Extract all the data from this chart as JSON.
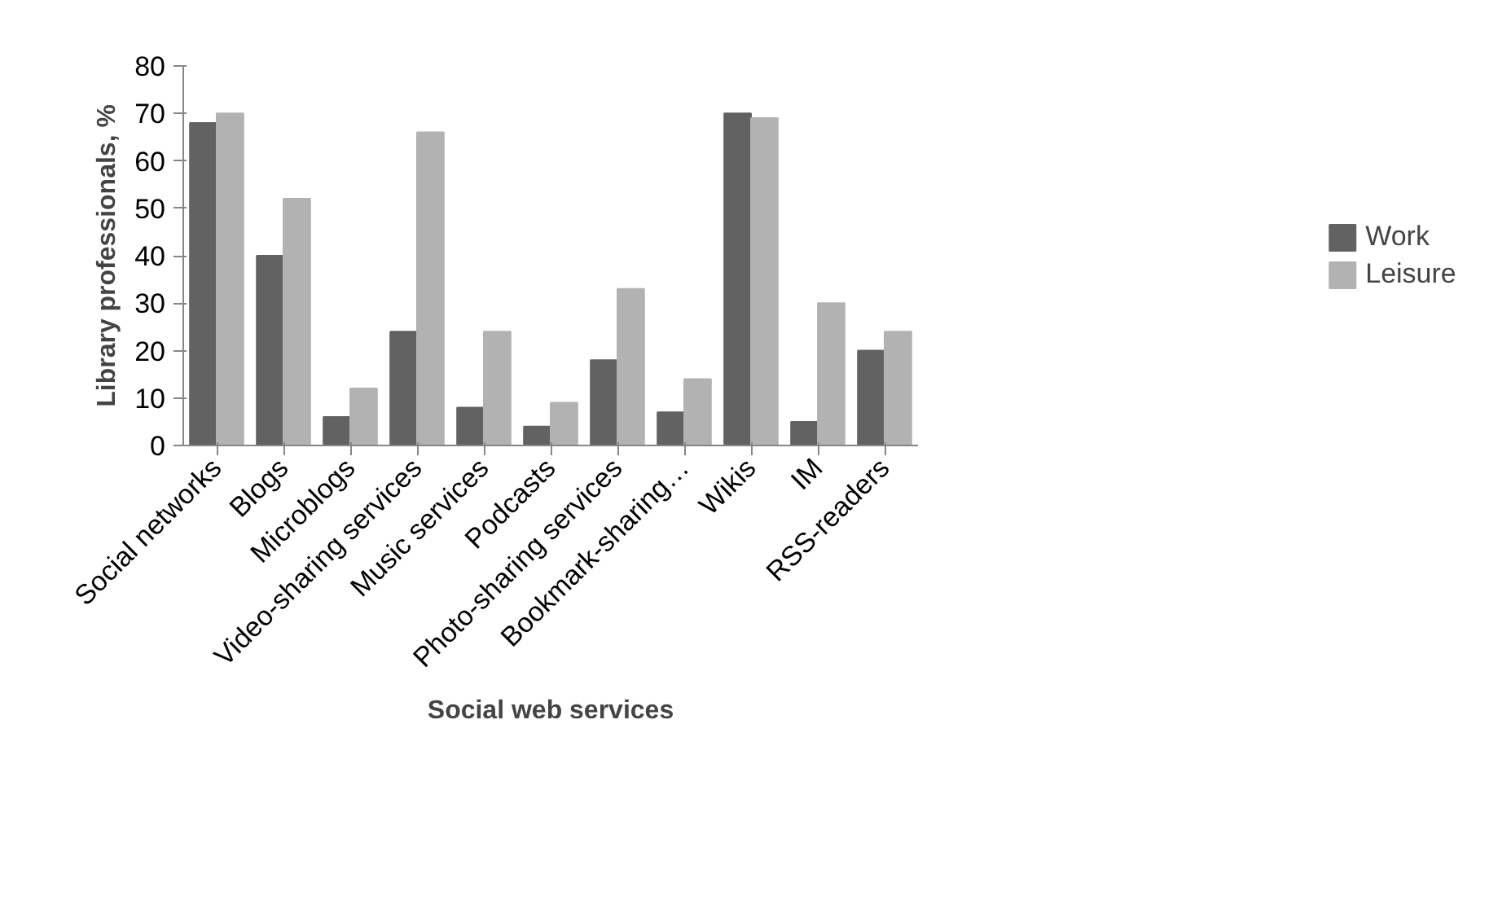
{
  "chart_data": {
    "type": "bar",
    "xlabel": "Social web services",
    "ylabel": "Library professionals, %",
    "categories": [
      "Social networks",
      "Blogs",
      "Microblogs",
      "Video-sharing services",
      "Music services",
      "Podcasts",
      "Photo-sharing services",
      "Bookmark-sharing…",
      "Wikis",
      "IM",
      "RSS-readers"
    ],
    "series": [
      {
        "name": "Work",
        "color": "#626262",
        "values": [
          68,
          40,
          6,
          24,
          8,
          4,
          18,
          7,
          70,
          5,
          20
        ]
      },
      {
        "name": "Leisure",
        "color": "#b2b2b2",
        "values": [
          70,
          52,
          12,
          66,
          24,
          9,
          33,
          14,
          69,
          30,
          24
        ]
      }
    ],
    "ylim": [
      0,
      80
    ],
    "yticks": [
      0,
      10,
      20,
      30,
      40,
      50,
      60,
      70,
      80
    ],
    "grid": false,
    "legend": "right"
  }
}
